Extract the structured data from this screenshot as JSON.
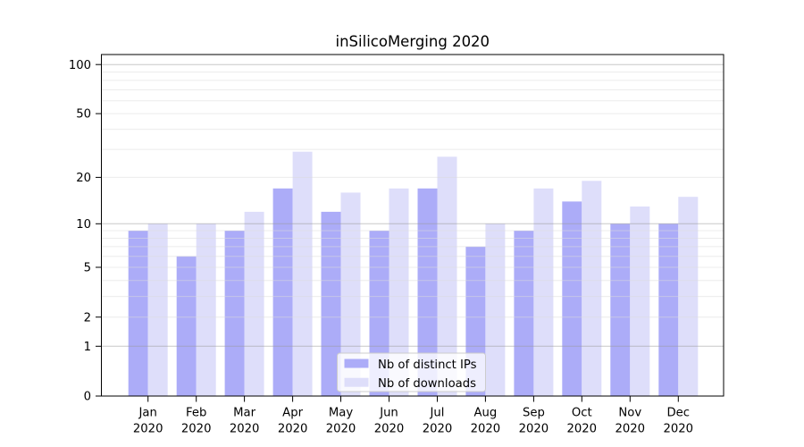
{
  "title": "inSilicoMerging 2020",
  "chart_data": {
    "type": "bar",
    "title": "inSilicoMerging 2020",
    "categories": [
      "Jan",
      "Feb",
      "Mar",
      "Apr",
      "May",
      "Jun",
      "Jul",
      "Aug",
      "Sep",
      "Oct",
      "Nov",
      "Dec"
    ],
    "year": "2020",
    "series": [
      {
        "name": "Nb of distinct IPs",
        "color": "#acacf8",
        "values": [
          9,
          6,
          9,
          17,
          12,
          9,
          17,
          7,
          9,
          14,
          10,
          10
        ]
      },
      {
        "name": "Nb of downloads",
        "color": "#dedefa",
        "values": [
          10,
          10,
          12,
          29,
          16,
          17,
          27,
          10,
          17,
          19,
          13,
          15
        ]
      }
    ],
    "yscale": "log1p",
    "yticks": [
      0,
      1,
      2,
      5,
      10,
      20,
      50,
      100
    ],
    "ylim": [
      0,
      115
    ],
    "grid": true,
    "major_grid_values": [
      1,
      10,
      100
    ],
    "minor_grid_values": [
      2,
      3,
      4,
      5,
      6,
      7,
      8,
      9,
      20,
      30,
      40,
      50,
      60,
      70,
      80,
      90
    ],
    "legend_position": "lower-center",
    "axis_color": "#000000",
    "major_grid_color": "#9a9a9a",
    "minor_grid_color": "#dcdcdc"
  }
}
